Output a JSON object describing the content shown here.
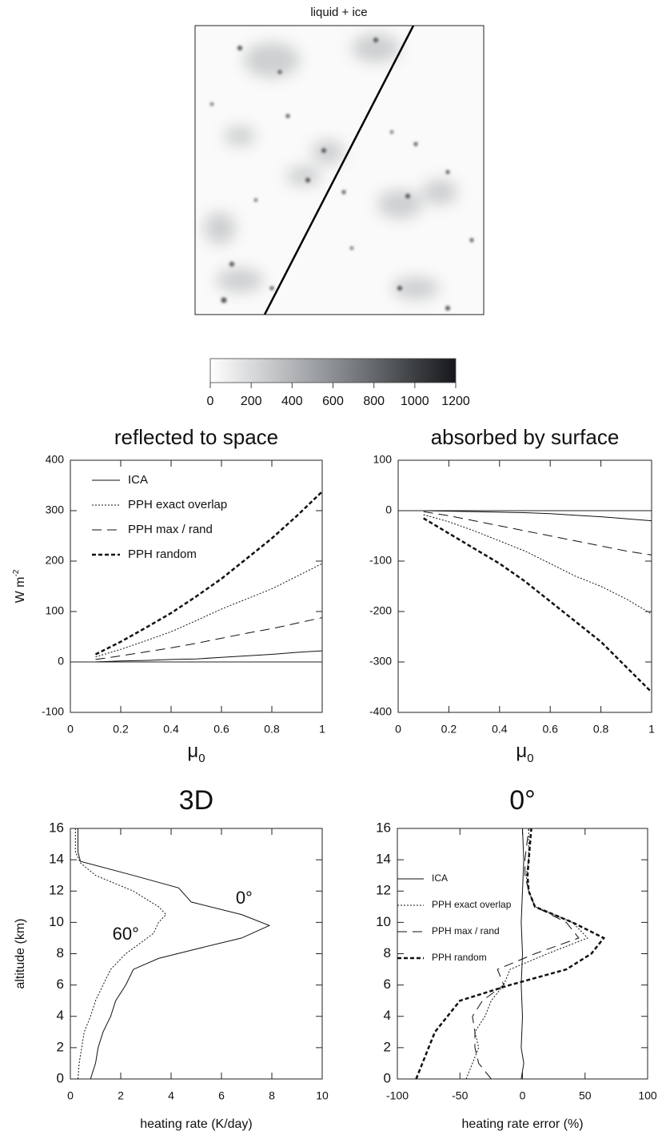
{
  "chart_data": [
    {
      "type": "image",
      "title": "liquid + ice",
      "colorbar": {
        "lim": [
          0,
          1200
        ],
        "ticks": [
          0,
          200,
          400,
          600,
          800,
          1000,
          1200
        ]
      }
    },
    {
      "type": "line",
      "title": "reflected to space",
      "xlabel": "μ",
      "xlabel_subscript": "0",
      "ylabel": "W m",
      "ylabel_superscript": "-2",
      "xlim": [
        0,
        1
      ],
      "ylim": [
        -100,
        400
      ],
      "xticks": [
        0,
        0.2,
        0.4,
        0.6,
        0.8,
        1
      ],
      "yticks": [
        -100,
        0,
        100,
        200,
        300,
        400
      ],
      "zero_line": true,
      "legend": "top-left",
      "x": [
        0.1,
        0.2,
        0.3,
        0.4,
        0.5,
        0.6,
        0.7,
        0.8,
        0.9,
        1
      ],
      "series": [
        {
          "name": "ICA",
          "color": "#111111",
          "style": "solid",
          "values": [
            0,
            2,
            3,
            5,
            6,
            9,
            12,
            15,
            19,
            22
          ]
        },
        {
          "name": "PPH exact overlap",
          "color": "#111111",
          "style": "dotted",
          "values": [
            10,
            25,
            42,
            60,
            82,
            105,
            125,
            145,
            170,
            195
          ]
        },
        {
          "name": "PPH  max / rand",
          "color": "#111111",
          "style": "dashed",
          "values": [
            5,
            12,
            20,
            28,
            37,
            47,
            57,
            66,
            77,
            88
          ]
        },
        {
          "name": "PPH  random",
          "color": "#111111",
          "style": "bold-dashed",
          "values": [
            15,
            40,
            68,
            97,
            130,
            165,
            205,
            245,
            290,
            338
          ]
        }
      ]
    },
    {
      "type": "line",
      "title": "absorbed by surface",
      "xlabel": "μ",
      "xlabel_subscript": "0",
      "xlim": [
        0,
        1
      ],
      "ylim": [
        -400,
        100
      ],
      "xticks": [
        0,
        0.2,
        0.4,
        0.6,
        0.8,
        1
      ],
      "yticks": [
        -400,
        -300,
        -200,
        -100,
        0,
        100
      ],
      "zero_line": true,
      "x": [
        0.1,
        0.2,
        0.3,
        0.4,
        0.5,
        0.6,
        0.7,
        0.8,
        0.9,
        1
      ],
      "series": [
        {
          "color": "#111111",
          "style": "solid",
          "values": [
            0,
            -1,
            -2,
            -3,
            -4,
            -6,
            -9,
            -12,
            -16,
            -20
          ]
        },
        {
          "color": "#111111",
          "style": "dotted",
          "values": [
            -8,
            -22,
            -40,
            -60,
            -80,
            -105,
            -130,
            -150,
            -175,
            -205
          ]
        },
        {
          "color": "#111111",
          "style": "dashed",
          "values": [
            -2,
            -10,
            -20,
            -30,
            -40,
            -50,
            -60,
            -70,
            -80,
            -88
          ]
        },
        {
          "color": "#111111",
          "style": "bold-dashed",
          "values": [
            -15,
            -45,
            -75,
            -105,
            -140,
            -180,
            -220,
            -260,
            -310,
            -360
          ]
        }
      ]
    },
    {
      "type": "line",
      "title": "3D",
      "xlabel": "heating rate (K/day)",
      "ylabel": "altitude (km)",
      "xlim": [
        0,
        10
      ],
      "ylim": [
        0,
        16
      ],
      "xticks": [
        0,
        2,
        4,
        6,
        8,
        10
      ],
      "yticks": [
        0,
        2,
        4,
        6,
        8,
        10,
        12,
        14,
        16
      ],
      "annotations": [
        {
          "text": "0°",
          "x": 6.9,
          "y": 11.5
        },
        {
          "text": "60°",
          "x": 2.2,
          "y": 9.2
        }
      ],
      "series": [
        {
          "color": "#111111",
          "style": "solid",
          "x": [
            0.8,
            0.9,
            1,
            1.1,
            1.3,
            1.6,
            1.8,
            2.2,
            2.5,
            3.5,
            5,
            6.8,
            7.9,
            6.8,
            4.8,
            4.3,
            2.5,
            0.4,
            0.3,
            0.3
          ],
          "values": [
            0,
            0.5,
            1,
            2,
            3,
            4,
            5,
            6,
            7,
            7.7,
            8.3,
            9,
            9.8,
            10.5,
            11.3,
            12.2,
            13,
            13.9,
            14.5,
            16
          ]
        },
        {
          "color": "#111111",
          "style": "dotted",
          "x": [
            0.3,
            0.35,
            0.45,
            0.55,
            0.8,
            1,
            1.3,
            1.6,
            2.2,
            2.8,
            3.3,
            3.5,
            3.8,
            3.5,
            2.5,
            1,
            0.4,
            0.2,
            0.2
          ],
          "values": [
            0,
            1,
            2,
            3,
            4,
            5,
            6,
            7,
            8,
            8.7,
            9.3,
            10,
            10.5,
            11,
            12,
            13,
            13.8,
            14.5,
            16
          ]
        }
      ]
    },
    {
      "type": "line",
      "title": "0°",
      "xlabel": "heating rate error (%)",
      "legend": "middle-left",
      "xlim": [
        -100,
        100
      ],
      "ylim": [
        0,
        16
      ],
      "xticks": [
        -100,
        -50,
        0,
        50,
        100
      ],
      "yticks": [
        0,
        2,
        4,
        6,
        8,
        10,
        12,
        14,
        16
      ],
      "series": [
        {
          "name": "ICA",
          "color": "#111111",
          "style": "solid",
          "x": [
            -1,
            1,
            -1,
            0,
            -1,
            0,
            -1,
            0,
            1,
            0
          ],
          "values": [
            0,
            1,
            2,
            4,
            6,
            8,
            10,
            12,
            14,
            16
          ]
        },
        {
          "name": "PPH exact overlap",
          "color": "#111111",
          "style": "dotted",
          "x": [
            -45,
            -40,
            -35,
            -38,
            -30,
            -25,
            -15,
            -10,
            20,
            52,
            40,
            10,
            5,
            3,
            5,
            5
          ],
          "values": [
            0,
            1,
            2,
            3,
            4,
            5,
            6,
            7,
            8,
            9,
            10,
            11,
            12,
            13,
            14,
            16
          ]
        },
        {
          "name": "PPH max / rand",
          "color": "#111111",
          "style": "dashed",
          "x": [
            -25,
            -35,
            -38,
            -38,
            -40,
            -32,
            -15,
            -20,
            10,
            45,
            35,
            10,
            5,
            2,
            2,
            5
          ],
          "values": [
            0,
            1,
            2,
            3,
            4,
            5,
            6,
            7,
            8,
            9,
            10,
            11,
            12,
            13,
            14,
            16
          ]
        },
        {
          "name": "PPH random",
          "color": "#111111",
          "style": "bold-dashed",
          "x": [
            -85,
            -80,
            -75,
            -70,
            -60,
            -50,
            -10,
            35,
            55,
            65,
            40,
            10,
            5,
            4,
            5,
            7
          ],
          "values": [
            0,
            1,
            2,
            3,
            4,
            5,
            6,
            7,
            8,
            9,
            10,
            11,
            12,
            13,
            14,
            16
          ]
        }
      ]
    }
  ]
}
